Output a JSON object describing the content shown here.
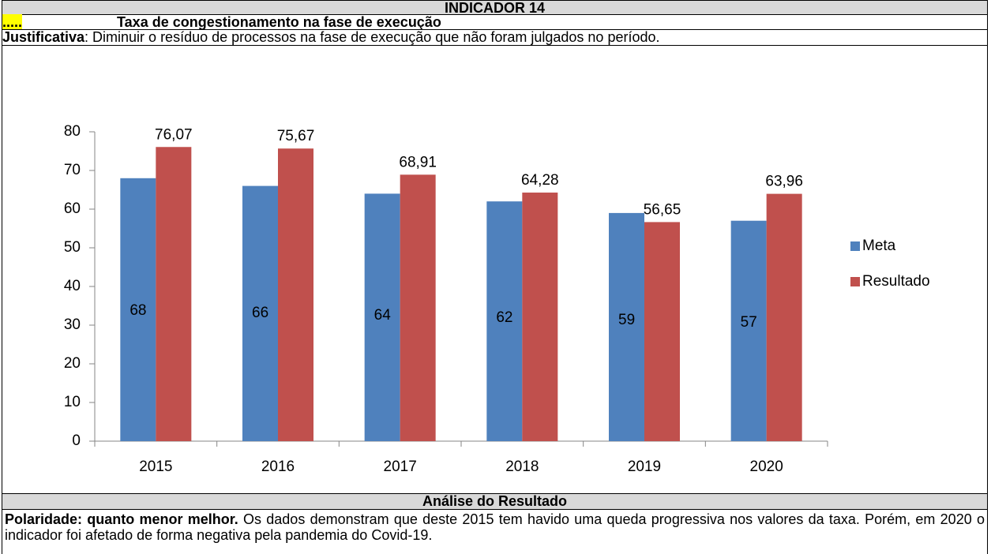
{
  "header": {
    "title": "INDICADOR 14",
    "marker": ".....",
    "subtitle": "Taxa de congestionamento na fase de execução",
    "justification_label": "Justificativa",
    "justification": ": Diminuir o resíduo de processos na fase de execução que não foram julgados no período."
  },
  "chart_data": {
    "type": "bar",
    "categories": [
      "2015",
      "2016",
      "2017",
      "2018",
      "2019",
      "2020"
    ],
    "series": [
      {
        "name": "Meta",
        "color": "#4f81bd",
        "values": [
          68,
          66,
          64,
          62,
          59,
          57
        ]
      },
      {
        "name": "Resultado",
        "color": "#c0504d",
        "values": [
          76.07,
          75.67,
          68.91,
          64.28,
          56.65,
          63.96
        ],
        "value_labels": [
          "76,07",
          "75,67",
          "68,91",
          "64,28",
          "56,65",
          "63,96"
        ]
      }
    ],
    "ylim": [
      0,
      80
    ],
    "yticks": [
      0,
      10,
      20,
      30,
      40,
      50,
      60,
      70,
      80
    ],
    "grid": false,
    "legend": "right"
  },
  "analysis": {
    "title": "Análise do Resultado",
    "polarity": "Polaridade: quanto menor melhor.",
    "text": "Os dados demonstram que deste 2015 tem havido uma queda progressiva nos valores da taxa. Porém, em 2020 o indicador foi afetado de forma negativa pela pandemia do Covid-19."
  }
}
